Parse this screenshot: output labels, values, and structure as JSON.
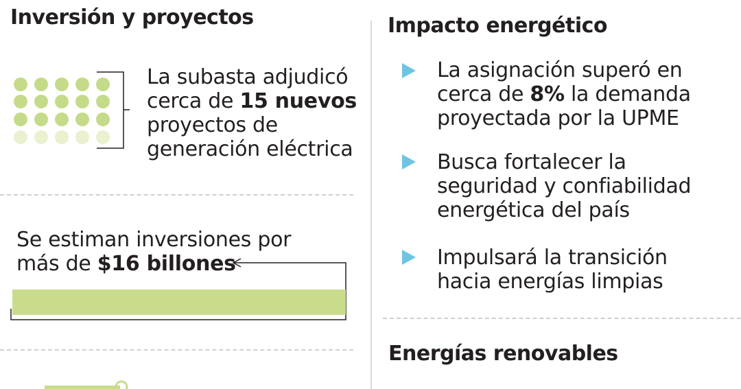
{
  "left": {
    "title": "Inversión y proyectos",
    "projects": {
      "line1": "La subasta adjudicó",
      "line2_pre": "cerca de ",
      "line2_bold": "15 nuevos",
      "line3": "proyectos de",
      "line4": "generación eléctrica"
    },
    "investment": {
      "line1": "Se estiman inversiones por",
      "line2_pre": "más de ",
      "line2_bold": "$16 billones"
    }
  },
  "right": {
    "title": "Impacto energético",
    "bullets": [
      {
        "pre": "La asignación superó en",
        "mid_pre": "cerca de ",
        "mid_bold": "8%",
        "mid_post": " la demanda",
        "last": "proyectada por la UPME"
      },
      {
        "l1": "Busca fortalecer la",
        "l2": "seguridad y confiabilidad",
        "l3": "energética del país"
      },
      {
        "l1": "Impulsará la transición",
        "l2": "hacia energías limpias"
      }
    ],
    "title2": "Energías renovables"
  },
  "colors": {
    "dot_solid": "#c5db89",
    "dot_light": "#e9f1cf",
    "bar": "#c8dc8c",
    "accent_triangle": "#6fc4e3"
  },
  "icons": [
    "dot-grid-icon",
    "triangle-bullet-icon",
    "arrow-left-icon"
  ]
}
